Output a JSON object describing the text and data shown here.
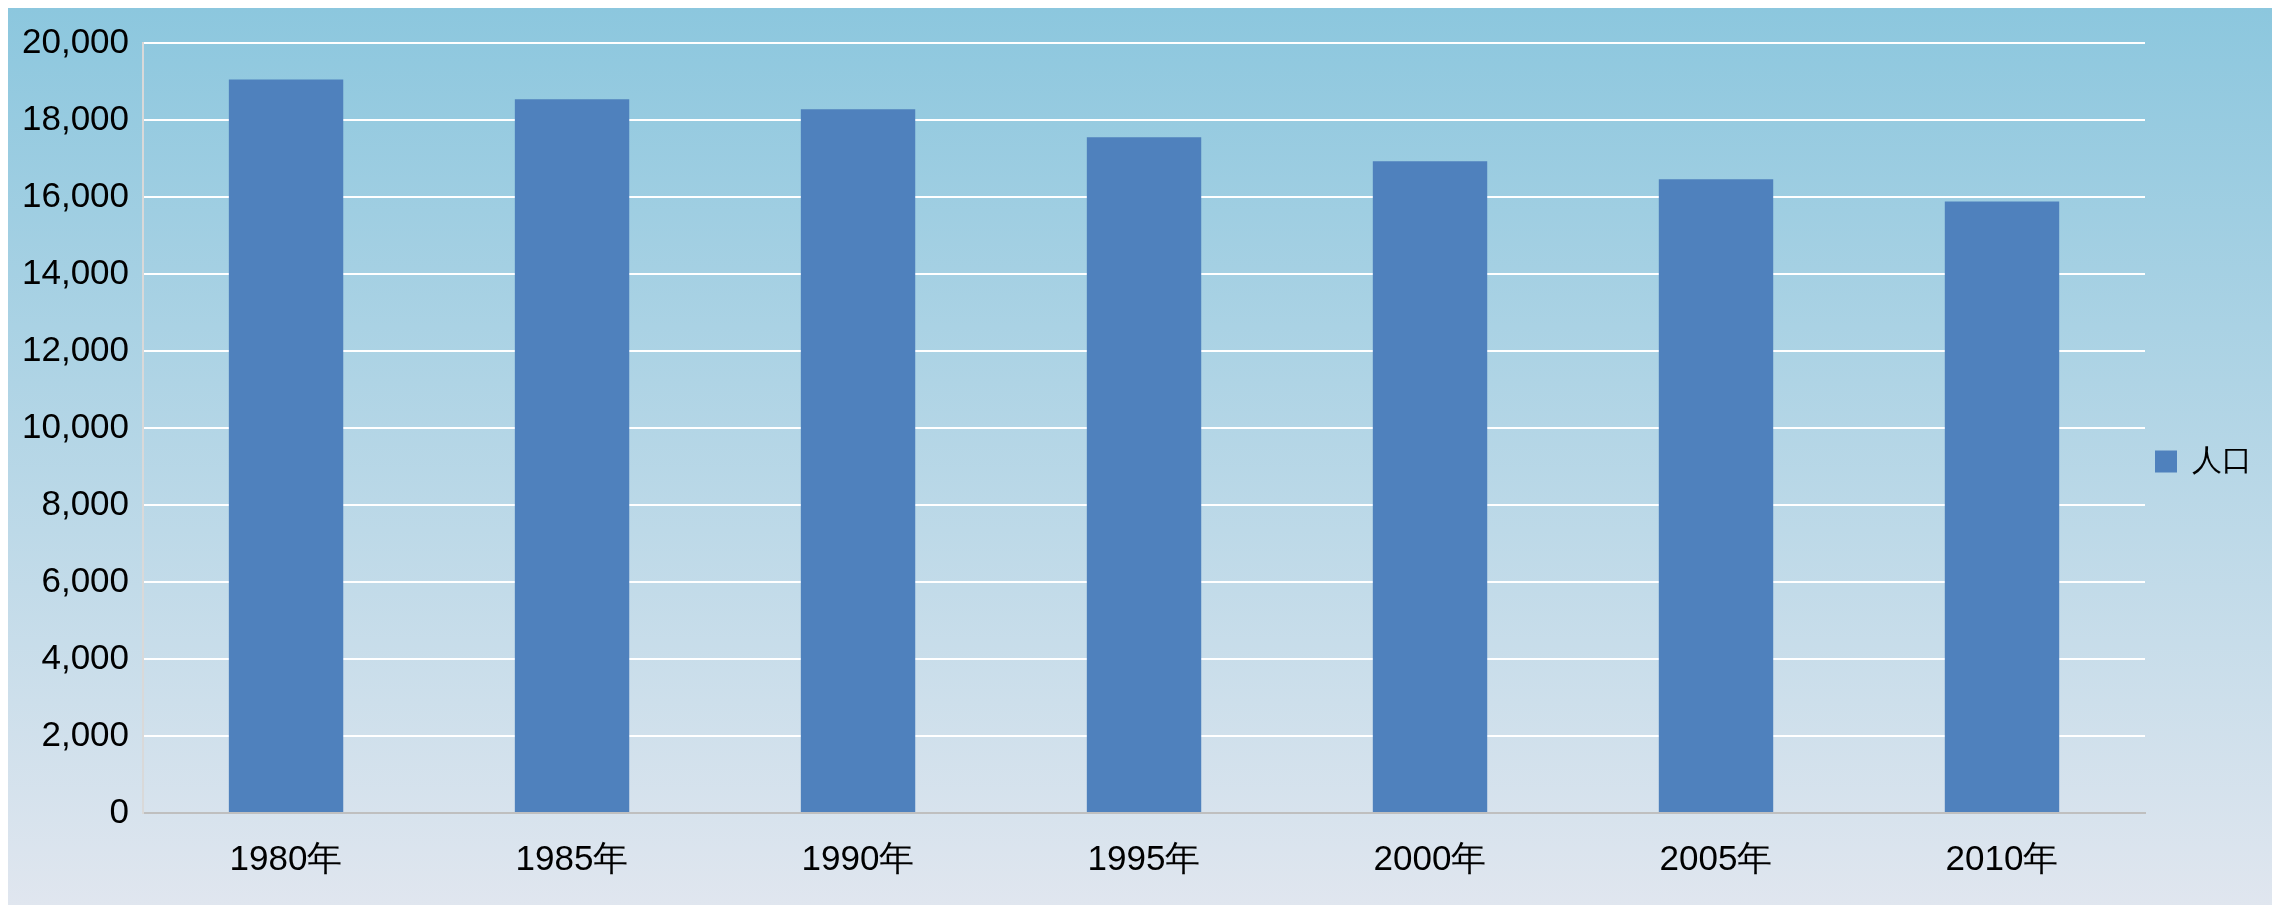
{
  "chart_data": {
    "type": "bar",
    "categories": [
      "1980年",
      "1985年",
      "1990年",
      "1995年",
      "2000年",
      "2005年",
      "2010年"
    ],
    "series": [
      {
        "name": "人口",
        "color": "#4f81bd",
        "values": [
          19050,
          18540,
          18280,
          17550,
          16930,
          16460,
          15880
        ]
      }
    ],
    "ylim": [
      0,
      20000
    ],
    "yticks": [
      {
        "value": 0,
        "label": "0"
      },
      {
        "value": 2000,
        "label": "2,000"
      },
      {
        "value": 4000,
        "label": "4,000"
      },
      {
        "value": 6000,
        "label": "6,000"
      },
      {
        "value": 8000,
        "label": "8,000"
      },
      {
        "value": 10000,
        "label": "10,000"
      },
      {
        "value": 12000,
        "label": "12,000"
      },
      {
        "value": 14000,
        "label": "14,000"
      },
      {
        "value": 16000,
        "label": "16,000"
      },
      {
        "value": 18000,
        "label": "18,000"
      },
      {
        "value": 20000,
        "label": "20,000"
      }
    ],
    "grid": "y",
    "legend": "right"
  }
}
